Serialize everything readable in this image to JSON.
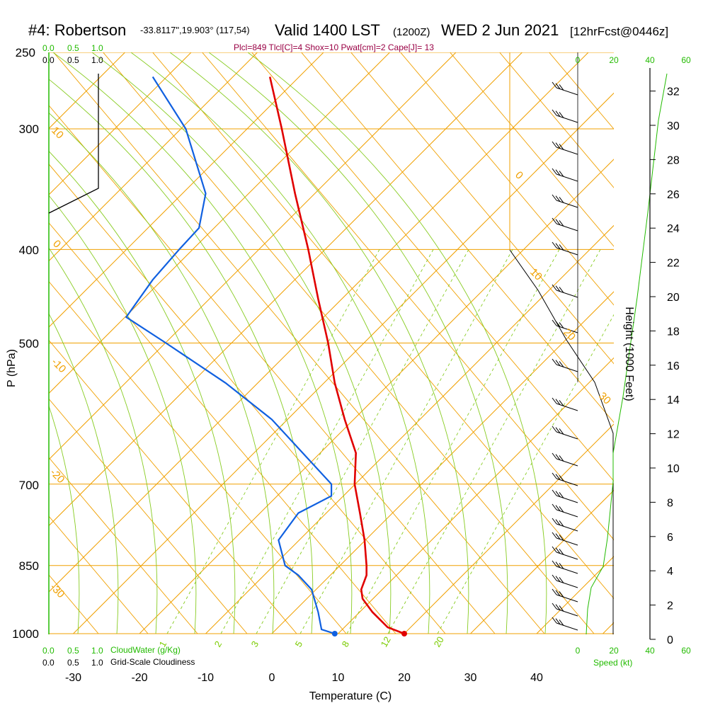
{
  "header": {
    "station": "#4: Robertson",
    "coords": "-33.8117\",19.903° (117,54)",
    "valid": "Valid 1400 LST",
    "zulu": "(1200Z)",
    "date": "WED 2 Jun 2021",
    "forecast": "[12hrFcst@0446z]",
    "indices": "Plcl=849 Tlcl[C]=4 Shox=10 Pwat[cm]=2 Cape[J]= 13"
  },
  "left_axis": {
    "label": "P (hPa)",
    "ticks": [
      "250",
      "300",
      "400",
      "500",
      "700",
      "850",
      "1000"
    ],
    "cloud_scale_top_green": [
      "0.0",
      "0.5",
      "1.0"
    ],
    "cloud_scale_top_black": [
      "0.0",
      "0.5",
      "1.0"
    ],
    "cloud_scale_bottom_green": [
      "0.0",
      "0.5",
      "1.0"
    ],
    "cloud_scale_bottom_black": [
      "0.0",
      "0.5",
      "1.0"
    ],
    "cloudwater_label": "CloudWater (g/Kg)",
    "cloudiness_label": "Grid-Scale Cloudiness"
  },
  "x_axis": {
    "label": "Temperature (C)",
    "ticks": [
      "-30",
      "-20",
      "-10",
      "0",
      "10",
      "20",
      "30",
      "40"
    ]
  },
  "right_axis": {
    "label": "Height (1000 Feet)",
    "ticks": [
      "32",
      "30",
      "28",
      "26",
      "24",
      "22",
      "20",
      "18",
      "16",
      "14",
      "12",
      "10",
      "8",
      "6",
      "4",
      "2",
      "0"
    ],
    "speed_ticks_top": [
      "0",
      "20",
      "40",
      "60"
    ],
    "speed_ticks_bottom": [
      "0",
      "20",
      "40",
      "60"
    ],
    "speed_label": "Speed (kt)"
  },
  "isotherm_labels": [
    "10",
    "0",
    "-10",
    "-20",
    "-30",
    "0",
    "10",
    "20",
    "30"
  ],
  "mixing_ratio_labels": [
    "1",
    "2",
    "3",
    "5",
    "8",
    "12",
    "20"
  ],
  "colors": {
    "temperature": "#e00000",
    "dewpoint": "#1060e0",
    "isotherm": "#f0a000",
    "adiabat": "#88cc22",
    "cloud": "#22bb00"
  },
  "chart_data": {
    "type": "line",
    "title": "Skew-T log-P sounding",
    "xlabel": "Temperature (C)",
    "ylabel": "P (hPa)",
    "ylim": [
      1000,
      250
    ],
    "xlim": [
      -34,
      46
    ],
    "series": [
      {
        "name": "Temperature",
        "points": [
          {
            "p": 1000,
            "t": 20.0
          },
          {
            "p": 985,
            "t": 17.5
          },
          {
            "p": 950,
            "t": 15.2
          },
          {
            "p": 920,
            "t": 13.7
          },
          {
            "p": 900,
            "t": 13.5
          },
          {
            "p": 870,
            "t": 14.3
          },
          {
            "p": 850,
            "t": 14.3
          },
          {
            "p": 800,
            "t": 14.0
          },
          {
            "p": 750,
            "t": 13.3
          },
          {
            "p": 700,
            "t": 12.5
          },
          {
            "p": 650,
            "t": 12.7
          },
          {
            "p": 600,
            "t": 11.0
          },
          {
            "p": 550,
            "t": 9.5
          },
          {
            "p": 500,
            "t": 8.5
          },
          {
            "p": 450,
            "t": 7.0
          },
          {
            "p": 400,
            "t": 5.5
          },
          {
            "p": 350,
            "t": 3.5
          },
          {
            "p": 300,
            "t": 1.5
          },
          {
            "p": 265,
            "t": -0.3
          }
        ]
      },
      {
        "name": "Dewpoint",
        "points": [
          {
            "p": 1000,
            "t": 9.5
          },
          {
            "p": 990,
            "t": 7.5
          },
          {
            "p": 950,
            "t": 7.0
          },
          {
            "p": 900,
            "t": 6.0
          },
          {
            "p": 870,
            "t": 4.0
          },
          {
            "p": 850,
            "t": 2.0
          },
          {
            "p": 800,
            "t": 1.0
          },
          {
            "p": 750,
            "t": 4.0
          },
          {
            "p": 720,
            "t": 9.0
          },
          {
            "p": 700,
            "t": 9.0
          },
          {
            "p": 600,
            "t": 0.0
          },
          {
            "p": 550,
            "t": -7.0
          },
          {
            "p": 500,
            "t": -16.0
          },
          {
            "p": 470,
            "t": -22.0
          },
          {
            "p": 430,
            "t": -18.0
          },
          {
            "p": 400,
            "t": -14.0
          },
          {
            "p": 380,
            "t": -11.0
          },
          {
            "p": 350,
            "t": -10.0
          },
          {
            "p": 300,
            "t": -13.0
          },
          {
            "p": 265,
            "t": -18.0
          }
        ]
      }
    ],
    "surface_temperature": 20.0,
    "surface_dewpoint": 9.5
  }
}
